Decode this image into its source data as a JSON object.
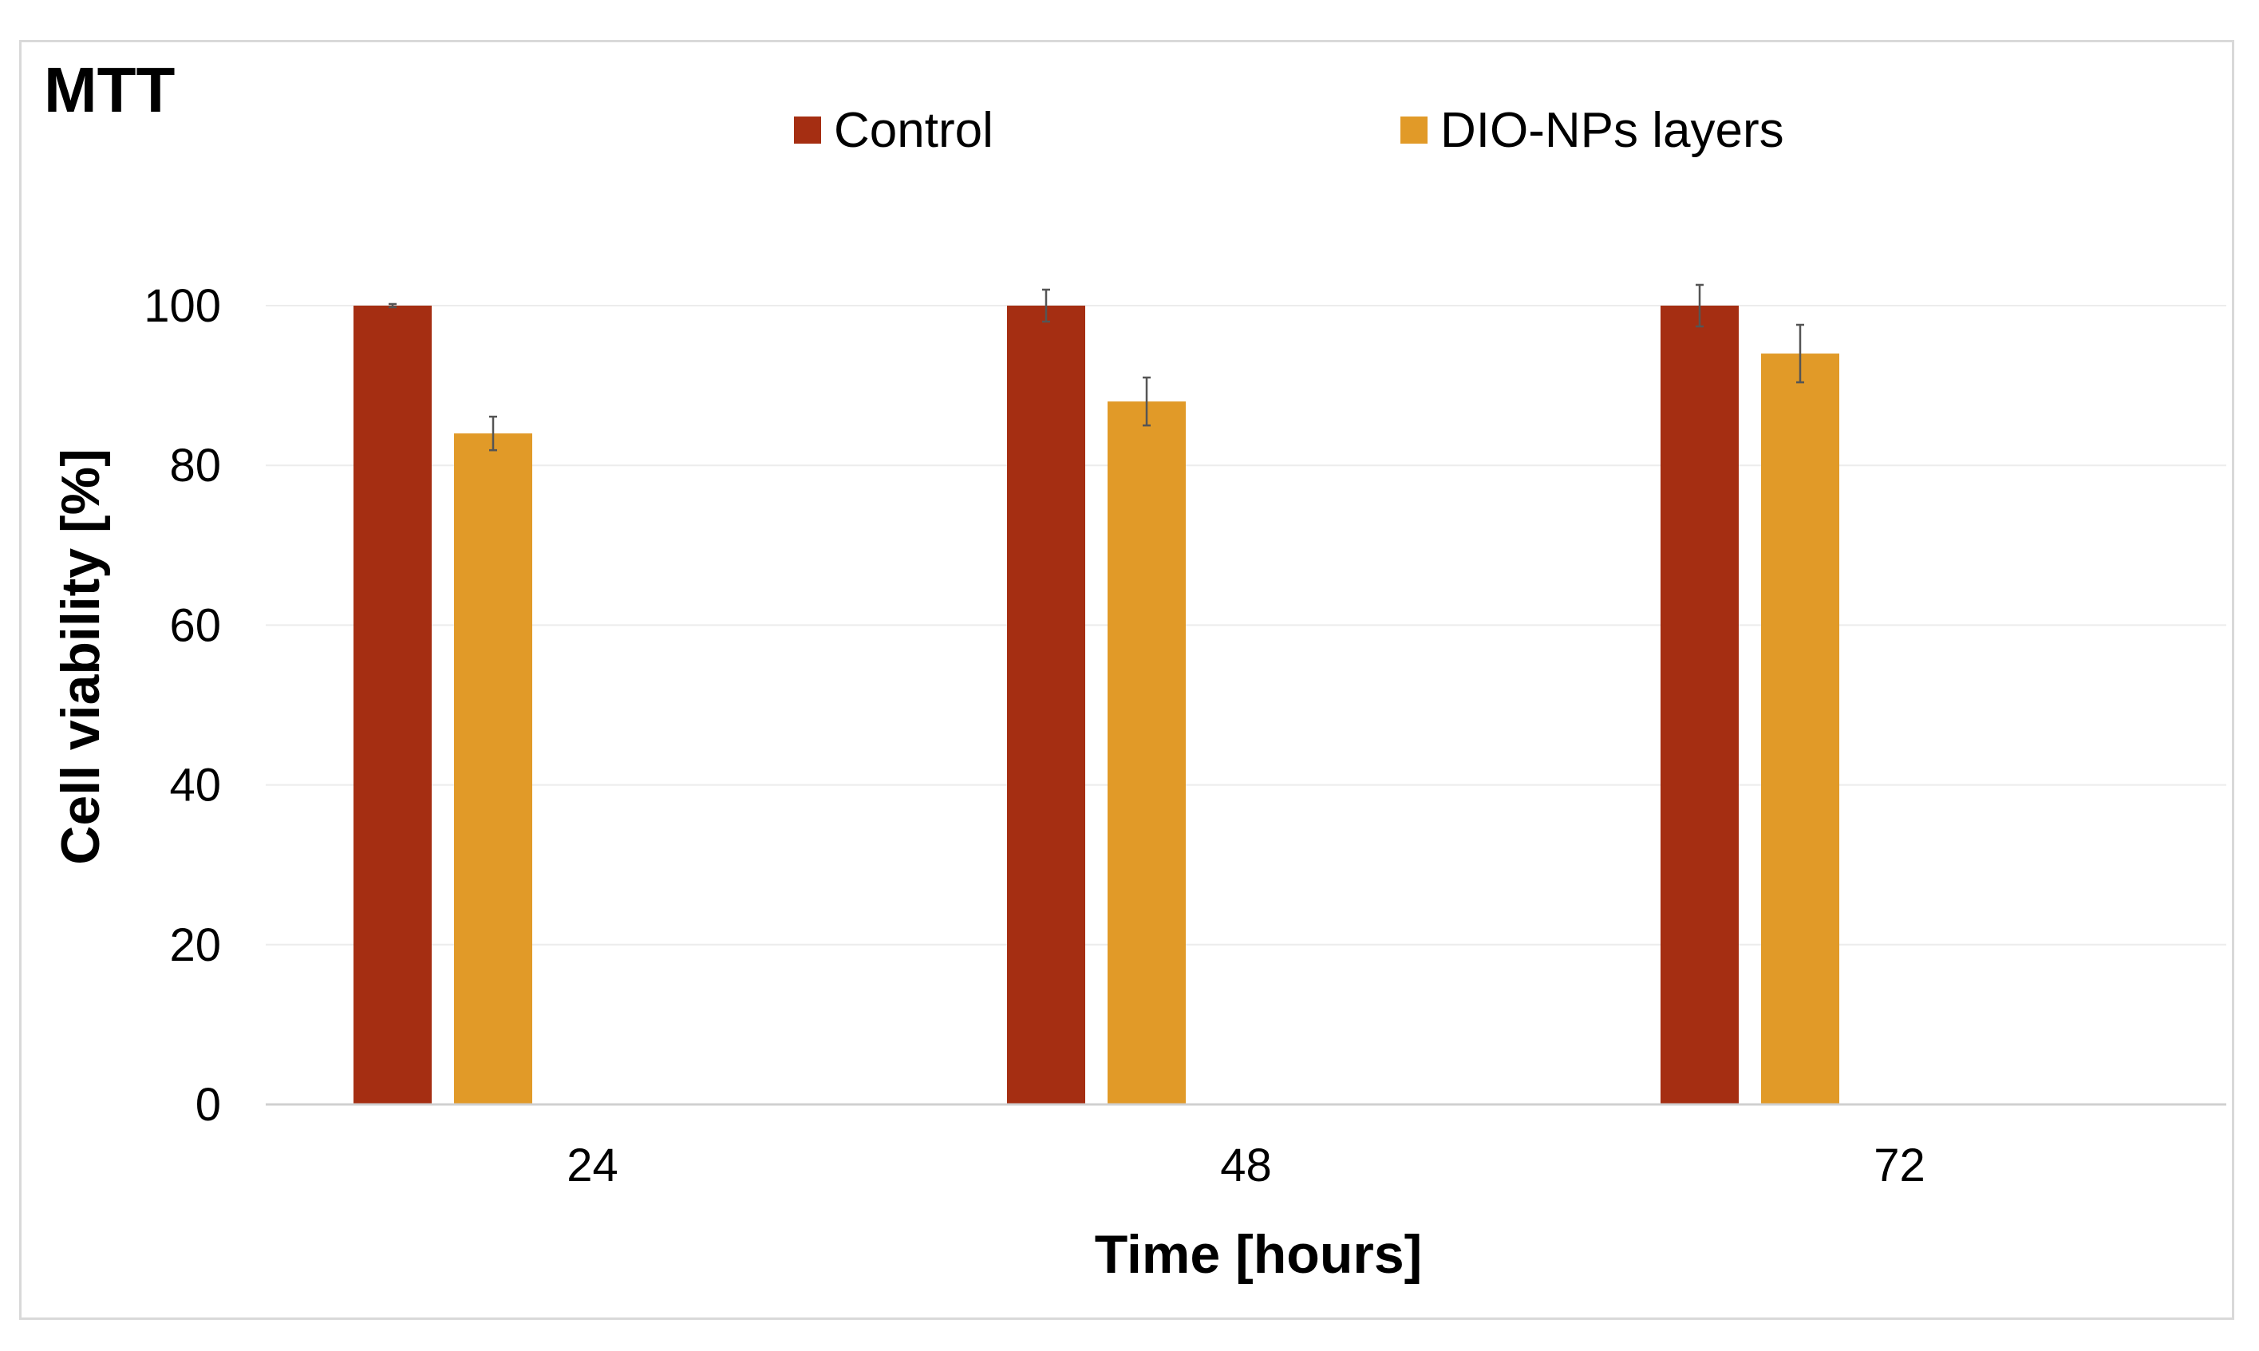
{
  "chart_data": {
    "type": "bar",
    "title": "MTT",
    "xlabel": "Time [hours]",
    "ylabel": "Cell viability [%]",
    "categories": [
      "24",
      "48",
      "72"
    ],
    "ylim": [
      0,
      100
    ],
    "yticks": [
      "0",
      "20",
      "40",
      "60",
      "80",
      "100"
    ],
    "grid": true,
    "legend_position": "top-center",
    "series": [
      {
        "name": "Control",
        "color": "#a52e12",
        "values": [
          100,
          100,
          100
        ],
        "errors": [
          0.2,
          2.0,
          2.6
        ]
      },
      {
        "name": "DIO-NPs layers",
        "color": "#e19a28",
        "values": [
          84,
          88,
          94
        ],
        "errors": [
          2.1,
          3.0,
          3.6
        ]
      }
    ]
  }
}
